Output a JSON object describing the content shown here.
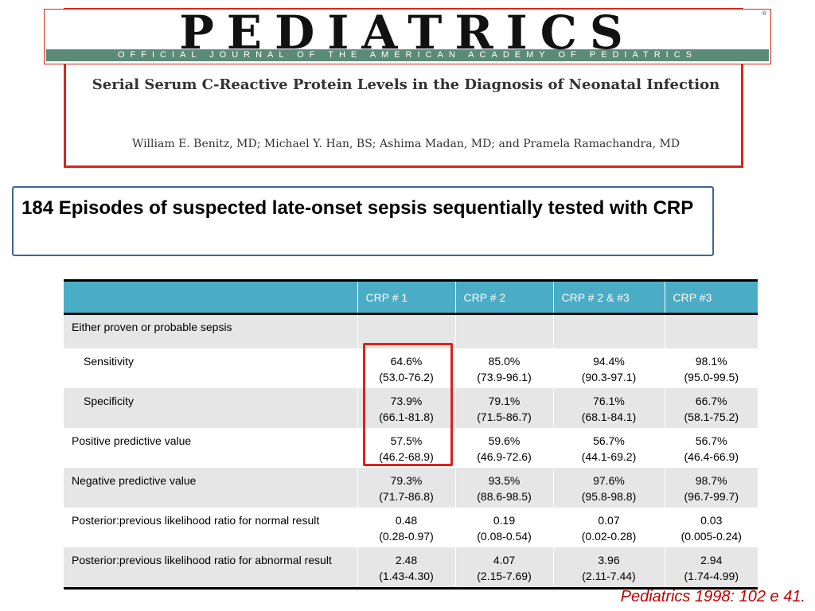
{
  "masthead": {
    "journal_name": "PEDIATRICS",
    "registered_mark": "®",
    "subtitle": "OFFICIAL JOURNAL OF THE AMERICAN ACADEMY OF PEDIATRICS"
  },
  "article": {
    "title": "Serial Serum C-Reactive Protein Levels in the Diagnosis of Neonatal Infection",
    "authors": "William E. Benitz, MD; Michael Y. Han, BS; Ashima Madan, MD; and Pramela Ramachandra, MD"
  },
  "summary": "184  Episodes of suspected late-onset sepsis sequentially tested with CRP",
  "table": {
    "headers": [
      "",
      "CRP # 1",
      "CRP # 2",
      "CRP # 2 & #3",
      "CRP #3"
    ],
    "group_label": "Either proven or probable sepsis",
    "rows": [
      {
        "label": "Sensitivity",
        "cells": [
          {
            "value": "64.6%",
            "ci": "(53.0-76.2)"
          },
          {
            "value": "85.0%",
            "ci": "(73.9-96.1)"
          },
          {
            "value": "94.4%",
            "ci": "(90.3-97.1)"
          },
          {
            "value": "98.1%",
            "ci": "(95.0-99.5)"
          }
        ]
      },
      {
        "label": "Specificity",
        "cells": [
          {
            "value": "73.9%",
            "ci": "(66.1-81.8)"
          },
          {
            "value": "79.1%",
            "ci": "(71.5-86.7)"
          },
          {
            "value": "76.1%",
            "ci": "(68.1-84.1)"
          },
          {
            "value": "66.7%",
            "ci": "(58.1-75.2)"
          }
        ]
      },
      {
        "label": "Positive predictive value",
        "cells": [
          {
            "value": "57.5%",
            "ci": "(46.2-68.9)"
          },
          {
            "value": "59.6%",
            "ci": "(46.9-72.6)"
          },
          {
            "value": "56.7%",
            "ci": "(44.1-69.2)"
          },
          {
            "value": "56.7%",
            "ci": "(46.4-66.9)"
          }
        ]
      },
      {
        "label": "Negative predictive value",
        "cells": [
          {
            "value": "79.3%",
            "ci": "(71.7-86.8)"
          },
          {
            "value": "93.5%",
            "ci": "(88.6-98.5)"
          },
          {
            "value": "97.6%",
            "ci": "(95.8-98.8)"
          },
          {
            "value": "98.7%",
            "ci": "(96.7-99.7)"
          }
        ]
      },
      {
        "label": "Posterior:previous likelihood ratio for normal result",
        "cells": [
          {
            "value": "0.48",
            "ci": "(0.28-0.97)"
          },
          {
            "value": "0.19",
            "ci": "(0.08-0.54)"
          },
          {
            "value": "0.07",
            "ci": "(0.02-0.28)"
          },
          {
            "value": "0.03",
            "ci": "(0.005-0.24)"
          }
        ]
      },
      {
        "label": "Posterior:previous likelihood ratio for abnormal result",
        "cells": [
          {
            "value": "2.48",
            "ci": "(1.43-4.30)"
          },
          {
            "value": "4.07",
            "ci": "(2.15-7.69)"
          },
          {
            "value": "3.96",
            "ci": "(2.11-7.44)"
          },
          {
            "value": "2.94",
            "ci": "(1.74-4.99)"
          }
        ]
      }
    ]
  },
  "citation": "Pediatrics 1998: 102 e 41.",
  "colors": {
    "header_fill": "#4bacc6",
    "row_shade": "#e6e6e6",
    "highlight": "#e0201b",
    "summary_border": "#3d6698",
    "citation": "#c00000",
    "masthead_band": "#5b8b77"
  }
}
